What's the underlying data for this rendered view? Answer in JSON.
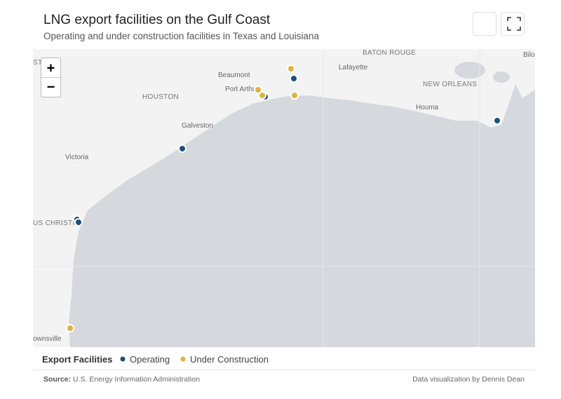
{
  "header": {
    "title": "LNG export facilities on the Gulf Coast",
    "subtitle": "Operating and under construction facilities in Texas and Louisiana"
  },
  "map": {
    "zoom_in": "+",
    "zoom_out": "−",
    "places": [
      "ST",
      "BATON ROUGE",
      "Bilo",
      "Lafayette",
      "Beaumont",
      "Port Arthur",
      "HOUSTON",
      "NEW ORLEANS",
      "Houma",
      "Galveston",
      "Victoria",
      "US CHRISTI",
      "ownsville"
    ]
  },
  "legend": {
    "title": "Export Facilities",
    "items": [
      {
        "label": "Operating",
        "color": "#1f4e79"
      },
      {
        "label": "Under Construction",
        "color": "#e0b23c"
      }
    ]
  },
  "footer": {
    "source_label": "Source:",
    "source": "U.S. Energy Information Administration",
    "credit": "Data visualization by Dennis Dean"
  }
}
